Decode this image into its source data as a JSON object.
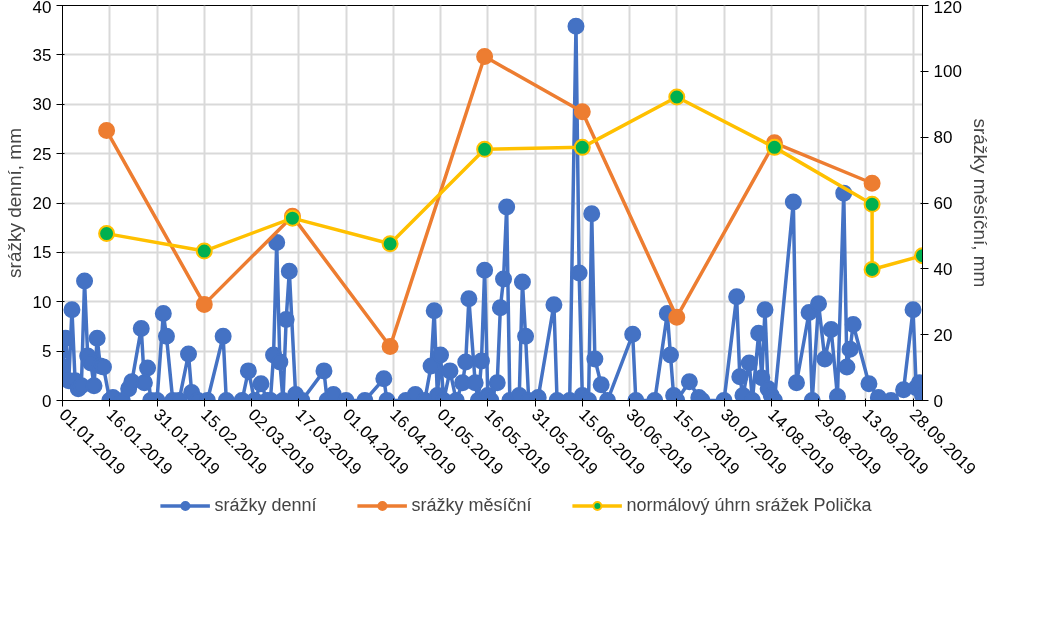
{
  "chart_data": {
    "type": "line",
    "ylabel": "srážky denní, mm",
    "y2label": "srážky měsíční, mm",
    "xlim": [
      "2019-01-01",
      "2019-10-01"
    ],
    "xticks": [
      {
        "value": "2019-01-01",
        "label": "01.01.2019"
      },
      {
        "value": "2019-01-16",
        "label": "16.01.2019"
      },
      {
        "value": "2019-01-31",
        "label": "31.01.2019"
      },
      {
        "value": "2019-02-15",
        "label": "15.02.2019"
      },
      {
        "value": "2019-03-02",
        "label": "02.03.2019"
      },
      {
        "value": "2019-03-17",
        "label": "17.03.2019"
      },
      {
        "value": "2019-04-01",
        "label": "01.04.2019"
      },
      {
        "value": "2019-04-16",
        "label": "16.04.2019"
      },
      {
        "value": "2019-05-01",
        "label": "01.05.2019"
      },
      {
        "value": "2019-05-16",
        "label": "16.05.2019"
      },
      {
        "value": "2019-05-31",
        "label": "31.05.2019"
      },
      {
        "value": "2019-06-15",
        "label": "15.06.2019"
      },
      {
        "value": "2019-06-30",
        "label": "30.06.2019"
      },
      {
        "value": "2019-07-15",
        "label": "15.07.2019"
      },
      {
        "value": "2019-07-30",
        "label": "30.07.2019"
      },
      {
        "value": "2019-08-14",
        "label": "14.08.2019"
      },
      {
        "value": "2019-08-29",
        "label": "29.08.2019"
      },
      {
        "value": "2019-09-13",
        "label": "13.09.2019"
      },
      {
        "value": "2019-09-28",
        "label": "28.09.2019"
      }
    ],
    "ylim": [
      0,
      40
    ],
    "yticks": [
      0,
      5,
      10,
      15,
      20,
      25,
      30,
      35,
      40
    ],
    "y2lim": [
      0,
      120
    ],
    "y2ticks": [
      0,
      20,
      40,
      60,
      80,
      100,
      120
    ],
    "grid": true,
    "legend": "bottom",
    "marker": "circle",
    "line_style": "solid",
    "series": [
      {
        "name": "srážky denní",
        "color": "#4472c4",
        "x": [
          "2019-01-01",
          "2019-01-02",
          "2019-01-03",
          "2019-01-04",
          "2019-01-05",
          "2019-01-06",
          "2019-01-07",
          "2019-01-08",
          "2019-01-09",
          "2019-01-10",
          "2019-01-11",
          "2019-01-12",
          "2019-01-13",
          "2019-01-14",
          "2019-01-16",
          "2019-01-17",
          "2019-01-20",
          "2019-01-22",
          "2019-01-23",
          "2019-01-26",
          "2019-01-27",
          "2019-01-28",
          "2019-01-29",
          "2019-01-31",
          "2019-02-02",
          "2019-02-03",
          "2019-02-05",
          "2019-02-07",
          "2019-02-10",
          "2019-02-11",
          "2019-02-13",
          "2019-02-16",
          "2019-02-21",
          "2019-02-22",
          "2019-02-27",
          "2019-03-01",
          "2019-03-03",
          "2019-03-05",
          "2019-03-07",
          "2019-03-08",
          "2019-03-09",
          "2019-03-10",
          "2019-03-11",
          "2019-03-12",
          "2019-03-13",
          "2019-03-14",
          "2019-03-16",
          "2019-03-18",
          "2019-03-25",
          "2019-03-26",
          "2019-03-28",
          "2019-04-01",
          "2019-04-07",
          "2019-04-13",
          "2019-04-14",
          "2019-04-20",
          "2019-04-23",
          "2019-04-26",
          "2019-04-28",
          "2019-04-29",
          "2019-04-30",
          "2019-05-01",
          "2019-05-02",
          "2019-05-04",
          "2019-05-06",
          "2019-05-08",
          "2019-05-09",
          "2019-05-10",
          "2019-05-12",
          "2019-05-13",
          "2019-05-14",
          "2019-05-15",
          "2019-05-16",
          "2019-05-17",
          "2019-05-19",
          "2019-05-20",
          "2019-05-21",
          "2019-05-22",
          "2019-05-23",
          "2019-05-26",
          "2019-05-27",
          "2019-05-28",
          "2019-05-29",
          "2019-06-01",
          "2019-06-06",
          "2019-06-07",
          "2019-06-11",
          "2019-06-13",
          "2019-06-14",
          "2019-06-15",
          "2019-06-17",
          "2019-06-18",
          "2019-06-19",
          "2019-06-21",
          "2019-06-23",
          "2019-07-01",
          "2019-07-02",
          "2019-07-08",
          "2019-07-12",
          "2019-07-13",
          "2019-07-14",
          "2019-07-15",
          "2019-07-19",
          "2019-07-22",
          "2019-07-23",
          "2019-07-30",
          "2019-08-03",
          "2019-08-04",
          "2019-08-05",
          "2019-08-07",
          "2019-08-08",
          "2019-08-10",
          "2019-08-11",
          "2019-08-12",
          "2019-08-13",
          "2019-08-14",
          "2019-08-15",
          "2019-08-21",
          "2019-08-22",
          "2019-08-26",
          "2019-08-27",
          "2019-08-29",
          "2019-08-31",
          "2019-09-02",
          "2019-09-04",
          "2019-09-06",
          "2019-09-07",
          "2019-09-08",
          "2019-09-09",
          "2019-09-14",
          "2019-09-17",
          "2019-09-21",
          "2019-09-25",
          "2019-09-28",
          "2019-09-29",
          "2019-09-30",
          "2019-10-01"
        ],
        "values": [
          3.4,
          6.3,
          2.0,
          9.2,
          2.0,
          1.2,
          1.5,
          12.1,
          4.5,
          3.8,
          1.5,
          6.3,
          3.5,
          3.4,
          0,
          0.3,
          0,
          1.2,
          1.9,
          7.3,
          1.8,
          3.3,
          0,
          0,
          8.8,
          6.5,
          0,
          0,
          4.7,
          0.8,
          0,
          0,
          6.5,
          0,
          0,
          3,
          0,
          1.7,
          0,
          0,
          4.6,
          16,
          3.9,
          0,
          8.2,
          13.1,
          0.6,
          0,
          3,
          0,
          0.6,
          0,
          0,
          2.2,
          0,
          0,
          0.6,
          0,
          3.5,
          9.1,
          0.5,
          4.6,
          0,
          3,
          0,
          1.8,
          3.9,
          10.3,
          1.8,
          0,
          4,
          13.2,
          0.5,
          0,
          1.8,
          9.4,
          12.3,
          19.6,
          0,
          0.5,
          12,
          6.5,
          0,
          0.3,
          9.7,
          0,
          0,
          37.9,
          12.9,
          0.5,
          0,
          18.9,
          4.2,
          1.6,
          0,
          6.7,
          0,
          0,
          8.8,
          4.6,
          0.5,
          0,
          1.9,
          0.3,
          0,
          0,
          10.5,
          2.4,
          0.5,
          3.8,
          0,
          6.8,
          2.3,
          9.2,
          1.2,
          0.5,
          0,
          20.1,
          1.8,
          8.9,
          0,
          9.8,
          4.2,
          7.2,
          0.4,
          21,
          3.4,
          5.2,
          7.7,
          1.7,
          0.3,
          0,
          1.1,
          9.2,
          1.3,
          1.8,
          0.5
        ]
      },
      {
        "name": "srážky měsíční",
        "color": "#ed7d31",
        "axis": "y2",
        "x": [
          "2019-01-15",
          "2019-02-15",
          "2019-03-15",
          "2019-04-15",
          "2019-05-15",
          "2019-06-15",
          "2019-07-15",
          "2019-08-15",
          "2019-09-15"
        ],
        "values": [
          82,
          29.2,
          56,
          16.4,
          104.5,
          87.7,
          25.3,
          78.3,
          66
        ]
      },
      {
        "name": "normálový úhrn srážek Polička",
        "color": "#ffc000",
        "axis": "y2",
        "colors": [
          "#00b050",
          "#00b050",
          "#00b050",
          "#00b050",
          "#00b050",
          "#00b050",
          "#00b050",
          "#00b050",
          "#00b050",
          "#00b050",
          "#00b050"
        ],
        "x": [
          "2019-01-15",
          "2019-02-15",
          "2019-03-15",
          "2019-04-15",
          "2019-05-15",
          "2019-06-15",
          "2019-07-15",
          "2019-08-15",
          "2019-09-15",
          "2019-09-15",
          "2019-10-01"
        ],
        "values": [
          50.7,
          45.4,
          55.4,
          47.6,
          76.3,
          76.9,
          92.2,
          76.9,
          59.6,
          39.8,
          44
        ]
      }
    ]
  }
}
